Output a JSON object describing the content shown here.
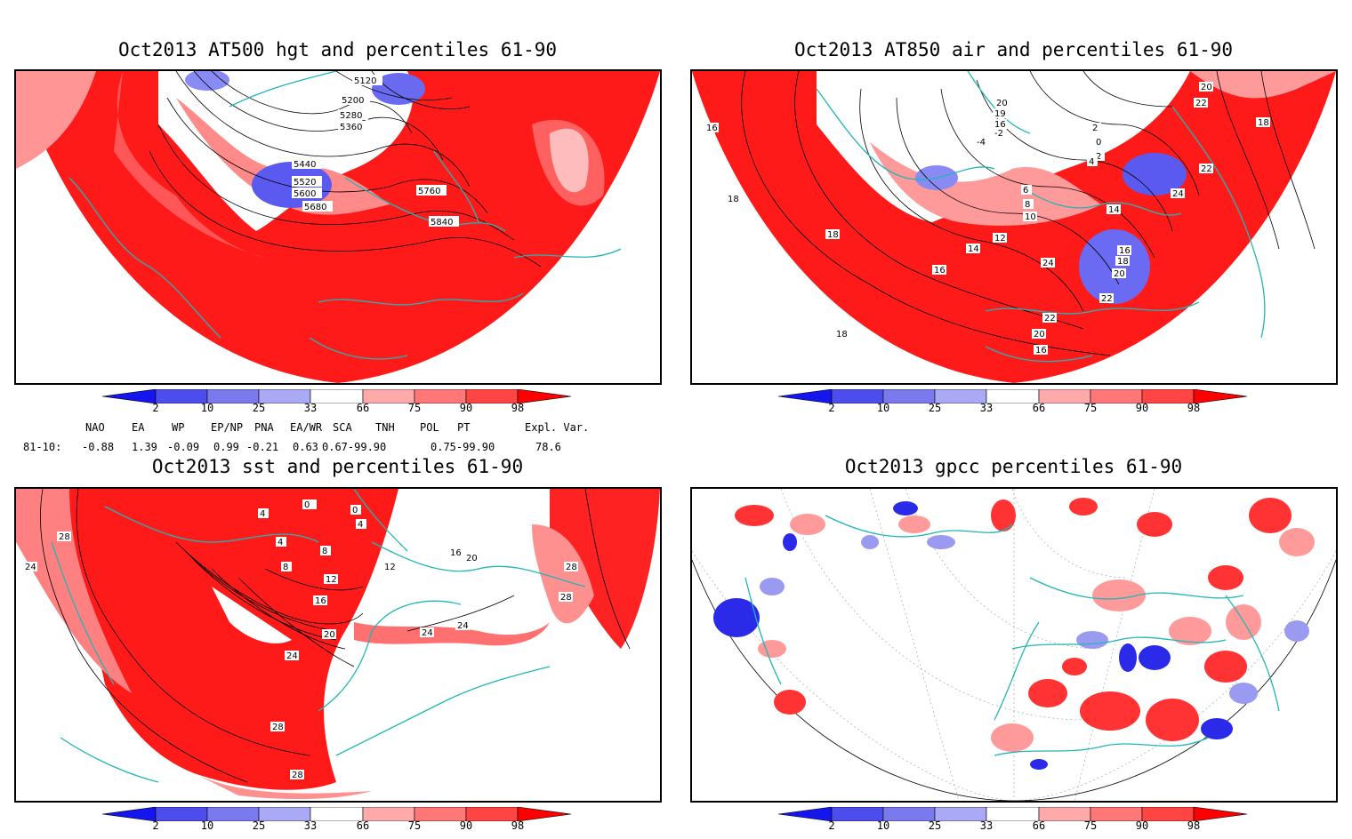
{
  "panels": [
    {
      "title": "Oct2013 AT500 hgt and percentiles 61-90",
      "contour_labels": [
        "5120",
        "5200",
        "5280",
        "5360",
        "5440",
        "5520",
        "5600",
        "5680",
        "5760",
        "5840"
      ]
    },
    {
      "title": "Oct2013 AT850 air and percentiles 61-90",
      "contour_labels": [
        "20",
        "19",
        "16",
        "2",
        "0",
        "-2",
        "-4",
        "2",
        "4",
        "6",
        "8",
        "10",
        "12",
        "14",
        "14",
        "16",
        "16",
        "18",
        "18",
        "18",
        "18",
        "20",
        "20",
        "22",
        "22",
        "22",
        "24",
        "24",
        "22",
        "20",
        "16",
        "18",
        "16"
      ]
    },
    {
      "title": "Oct2013 sst and percentiles 61-90",
      "contour_labels": [
        "4",
        "0",
        "4",
        "4",
        "8",
        "8",
        "12",
        "16",
        "20",
        "24",
        "24",
        "24",
        "28",
        "28",
        "28",
        "16",
        "20",
        "12",
        "0",
        "28",
        "28",
        "24"
      ]
    },
    {
      "title": "Oct2013 gpcc percentiles 61-90",
      "contour_labels": []
    }
  ],
  "colorbar": {
    "tick_labels": [
      "2",
      "10",
      "25",
      "33",
      "66",
      "75",
      "90",
      "98"
    ],
    "colors": [
      "#1515ee",
      "#4d4dee",
      "#7a7aee",
      "#a9a9f5",
      "#ffffff",
      "#ffaaaa",
      "#ff7777",
      "#ff4444",
      "#ff0000"
    ]
  },
  "indices": {
    "headers": [
      "NAO",
      "EA",
      "WP",
      "EP/NP",
      "PNA",
      "EA/WR",
      "SCA",
      "TNH",
      "POL",
      "PT",
      "Expl. Var."
    ],
    "row_label": "81-10:",
    "values": [
      "-0.88",
      "1.39",
      "-0.09",
      "0.99",
      "-0.21",
      "0.63",
      "0.67-99.90",
      "0.75-99.90",
      "78.6"
    ]
  }
}
